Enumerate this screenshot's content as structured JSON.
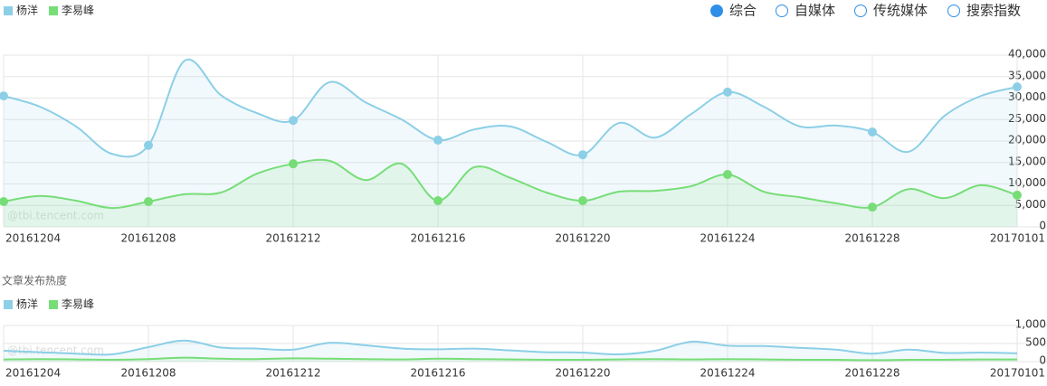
{
  "buttons": [
    "综合",
    "自媒体",
    "传统媒体",
    "搜索指数"
  ],
  "chart_data": [
    {
      "type": "line",
      "annotations": [
        "@tbi.tencent.com"
      ],
      "categories": [
        "20161204",
        null,
        null,
        null,
        "20161208",
        null,
        null,
        null,
        "20161212",
        null,
        null,
        null,
        "20161216",
        null,
        null,
        null,
        "20161220",
        null,
        null,
        null,
        "20161224",
        null,
        null,
        null,
        "20161228",
        null,
        null,
        null,
        "20170101"
      ],
      "series": [
        {
          "name": "杨洋",
          "color": "#8ccfe6",
          "values": [
            30500,
            28000,
            23400,
            17000,
            19000,
            38700,
            30700,
            26500,
            24800,
            33700,
            29000,
            25000,
            20200,
            22700,
            23400,
            19800,
            16800,
            24200,
            20800,
            26300,
            31400,
            28000,
            23400,
            23600,
            22100,
            17500,
            25900,
            30500,
            32600
          ]
        },
        {
          "name": "李易峰",
          "color": "#77dd77",
          "values": [
            5900,
            7200,
            6100,
            4400,
            5900,
            7600,
            8000,
            12400,
            14700,
            15400,
            10900,
            14700,
            6100,
            13900,
            11400,
            8000,
            6100,
            8200,
            8400,
            9500,
            12200,
            8200,
            6900,
            5500,
            4600,
            8800,
            6700,
            9700,
            7400
          ]
        }
      ],
      "ylim": [
        0,
        40000
      ],
      "yticks": [
        0,
        {
          "value": 5000,
          "label": "5,000"
        },
        {
          "value": 10000,
          "label": "10,000"
        },
        {
          "value": 15000,
          "label": "15,000"
        },
        {
          "value": 20000,
          "label": "20,000"
        },
        {
          "value": 25000,
          "label": "25,000"
        },
        {
          "value": 30000,
          "label": "30,000"
        },
        {
          "value": 35000,
          "label": "35,000"
        },
        {
          "value": 40000,
          "label": "40,000"
        }
      ],
      "grid": true
    },
    {
      "type": "line",
      "title": "文章发布热度",
      "annotations": [
        "@tbi.tencent.com"
      ],
      "categories": [
        "20161204",
        null,
        null,
        null,
        "20161208",
        null,
        null,
        null,
        "20161212",
        null,
        null,
        null,
        "20161216",
        null,
        null,
        null,
        "20161220",
        null,
        null,
        null,
        "20161224",
        null,
        null,
        null,
        "20161228",
        null,
        null,
        null,
        "20170101"
      ],
      "series": [
        {
          "name": "杨洋",
          "color": "#8ccfe6",
          "values": [
            300,
            260,
            220,
            200,
            400,
            580,
            390,
            360,
            330,
            520,
            450,
            360,
            340,
            360,
            310,
            260,
            250,
            200,
            300,
            550,
            440,
            430,
            380,
            330,
            220,
            330,
            240,
            250,
            230
          ]
        },
        {
          "name": "李易峰",
          "color": "#77dd77",
          "values": [
            60,
            70,
            60,
            50,
            70,
            110,
            80,
            70,
            90,
            80,
            70,
            60,
            80,
            70,
            60,
            50,
            50,
            60,
            70,
            60,
            70,
            60,
            50,
            50,
            40,
            50,
            50,
            60,
            60
          ]
        }
      ],
      "ylim": [
        0,
        1000
      ],
      "yticks": [
        0,
        500,
        {
          "value": 1000,
          "label": "1,000"
        }
      ],
      "grid": true
    }
  ]
}
